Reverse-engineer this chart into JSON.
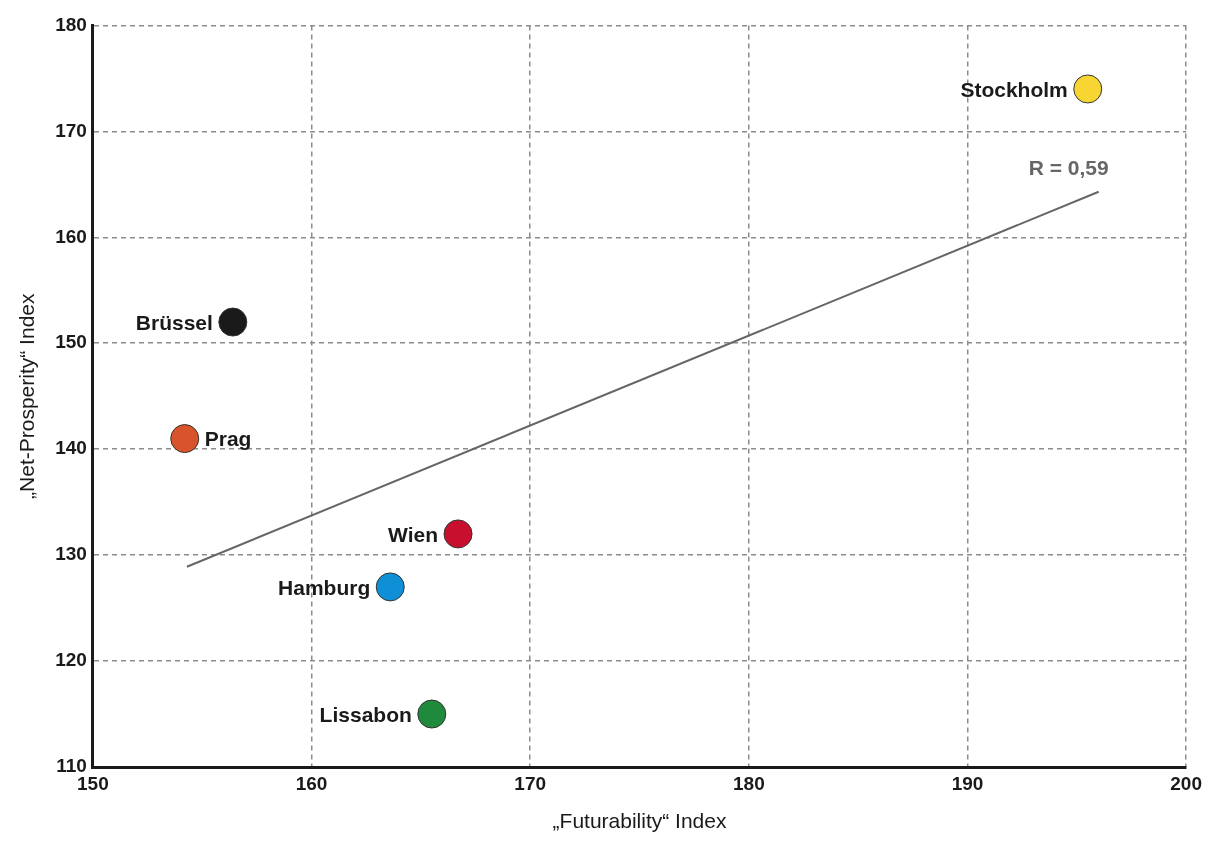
{
  "chart_data": {
    "type": "scatter",
    "xlabel": "„Futurability“ Index",
    "ylabel": "„Net-Prosperity“ Index",
    "xlim": [
      150,
      200
    ],
    "xticks": [
      150,
      160,
      170,
      180,
      190,
      200
    ],
    "ylim": [
      110,
      180
    ],
    "yticks": [
      110,
      120,
      130,
      140,
      150,
      160,
      170,
      180
    ],
    "grid": true,
    "legend": false,
    "marker": "circle",
    "series": [
      {
        "name": "Stockholm",
        "color": "#f7d633",
        "x": [
          195.5
        ],
        "values": [
          174
        ]
      },
      {
        "name": "Brüssel",
        "color": "#1a1a1a",
        "x": [
          156.4
        ],
        "values": [
          152
        ]
      },
      {
        "name": "Prag",
        "color": "#d9542b",
        "x": [
          154.2
        ],
        "values": [
          141
        ]
      },
      {
        "name": "Wien",
        "color": "#c8102e",
        "x": [
          166.7
        ],
        "values": [
          132
        ]
      },
      {
        "name": "Hamburg",
        "color": "#0f8fd6",
        "x": [
          163.6
        ],
        "values": [
          127
        ]
      },
      {
        "name": "Lissabon",
        "color": "#1f8a3c",
        "x": [
          165.5
        ],
        "values": [
          115
        ]
      },
      {
        "type": "line",
        "marker": "none",
        "color": "#666666",
        "x": [
          154.3,
          196.0
        ],
        "values": [
          128.9,
          164.3
        ]
      }
    ],
    "annotations": [
      "R = 0,59"
    ]
  }
}
